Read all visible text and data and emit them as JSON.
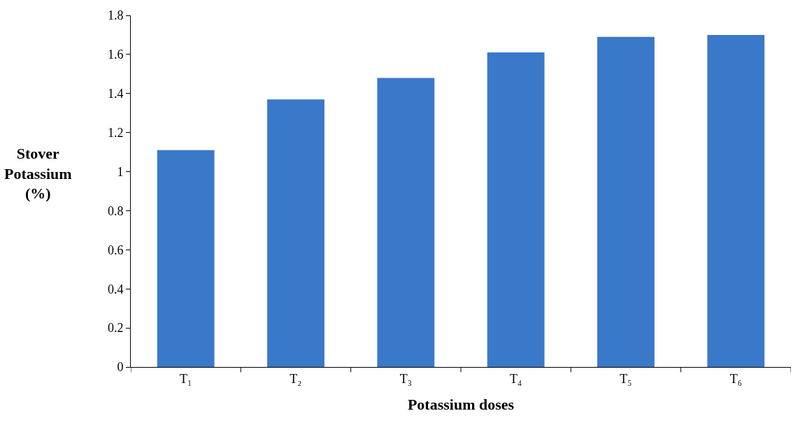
{
  "chart_data": {
    "type": "bar",
    "xlabel": "Potassium doses",
    "ylabel": "Stover\nPotassium\n(%)",
    "categories": [
      "T₁",
      "T₂",
      "T₃",
      "T₄",
      "T₅",
      "T₆"
    ],
    "values": [
      1.11,
      1.37,
      1.48,
      1.61,
      1.69,
      1.7
    ],
    "color": "#3a78c9",
    "ylim": [
      0,
      1.8
    ],
    "yticks": [
      0,
      0.2,
      0.4,
      0.6,
      0.8,
      1,
      1.2,
      1.4,
      1.6,
      1.8
    ]
  }
}
